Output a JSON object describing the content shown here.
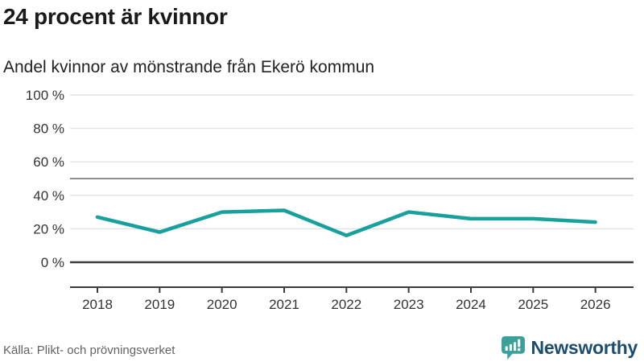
{
  "header": {
    "title": "24 procent är kvinnor",
    "subtitle": "Andel kvinnor av mönstrande från Ekerö kommun"
  },
  "chart_data": {
    "type": "line",
    "categories": [
      "2018",
      "2019",
      "2020",
      "2021",
      "2022",
      "2023",
      "2024",
      "2025",
      "2026"
    ],
    "series": [
      {
        "name": "andel-kvinnor",
        "values": [
          27,
          18,
          30,
          31,
          16,
          30,
          26,
          26,
          24
        ]
      }
    ],
    "title": "24 procent är kvinnor",
    "subtitle": "Andel kvinnor av mönstrande från Ekerö kommun",
    "xlabel": "",
    "ylabel": "",
    "unit": "%",
    "ylim": [
      0,
      100
    ],
    "yticks": [
      0,
      20,
      40,
      60,
      80,
      100
    ],
    "ytick_suffix": " %",
    "reference_line": 50,
    "grid": true,
    "legend": "none",
    "line_color": "#18a19c"
  },
  "footer": {
    "source": "Källa: Plikt- och prövningsverket",
    "brand": "Newsworthy"
  },
  "colors": {
    "line": "#18a19c",
    "grid_light": "#e2e2e2",
    "grid_reference": "#8d8d8d",
    "axis_dark": "#3b3b3b",
    "brand_teal": "#3ba09a",
    "brand_text": "#1d4d6d"
  },
  "icons": {
    "logo": "newsworthy-speech-bubble-bar-chart-icon"
  }
}
